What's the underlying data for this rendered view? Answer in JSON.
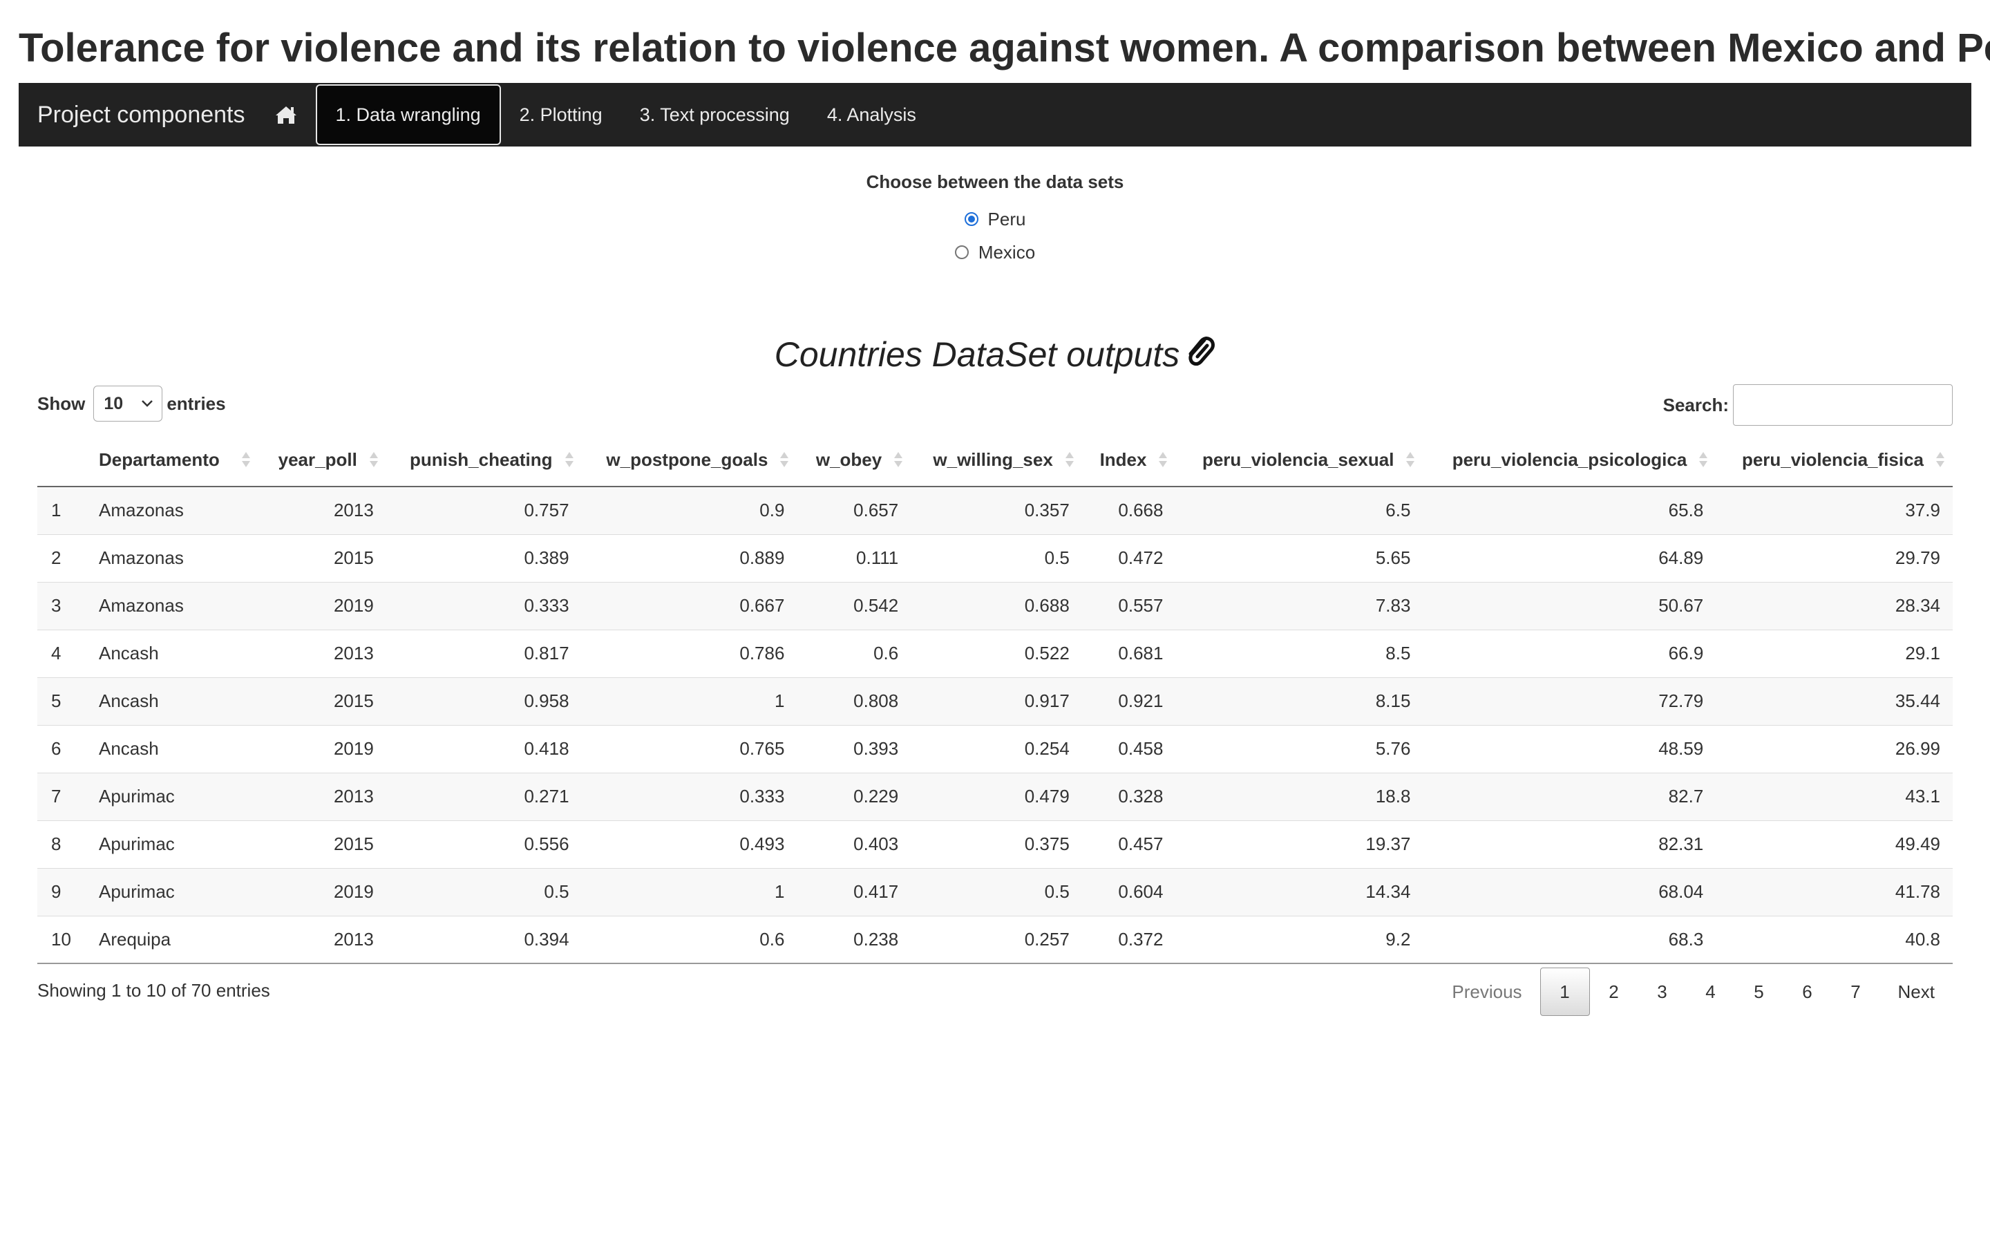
{
  "page": {
    "title": "Tolerance for violence and its relation to violence against women. A comparison between Mexico and Peru"
  },
  "navbar": {
    "brand": "Project components",
    "home_icon": "home-icon",
    "tabs": [
      {
        "label": "1. Data wrangling",
        "active": true
      },
      {
        "label": "2. Plotting",
        "active": false
      },
      {
        "label": "3. Text processing",
        "active": false
      },
      {
        "label": "4. Analysis",
        "active": false
      }
    ]
  },
  "dataset_choice": {
    "label": "Choose between the data sets",
    "options": [
      {
        "label": "Peru",
        "checked": true
      },
      {
        "label": "Mexico",
        "checked": false
      }
    ],
    "accent_color": "#1e6fd9"
  },
  "section": {
    "heading": "Countries DataSet outputs",
    "icon": "paperclip-icon"
  },
  "table_controls": {
    "show_label": "Show",
    "entries_value": "10",
    "entries_label": "entries",
    "search_label": "Search:",
    "search_value": ""
  },
  "table": {
    "columns": [
      "",
      "Departamento",
      "year_poll",
      "punish_cheating",
      "w_postpone_goals",
      "w_obey",
      "w_willing_sex",
      "Index",
      "peru_violencia_sexual",
      "peru_violencia_psicologica",
      "peru_violencia_fisica"
    ],
    "rows": [
      [
        "1",
        "Amazonas",
        "2013",
        "0.757",
        "0.9",
        "0.657",
        "0.357",
        "0.668",
        "6.5",
        "65.8",
        "37.9"
      ],
      [
        "2",
        "Amazonas",
        "2015",
        "0.389",
        "0.889",
        "0.111",
        "0.5",
        "0.472",
        "5.65",
        "64.89",
        "29.79"
      ],
      [
        "3",
        "Amazonas",
        "2019",
        "0.333",
        "0.667",
        "0.542",
        "0.688",
        "0.557",
        "7.83",
        "50.67",
        "28.34"
      ],
      [
        "4",
        "Ancash",
        "2013",
        "0.817",
        "0.786",
        "0.6",
        "0.522",
        "0.681",
        "8.5",
        "66.9",
        "29.1"
      ],
      [
        "5",
        "Ancash",
        "2015",
        "0.958",
        "1",
        "0.808",
        "0.917",
        "0.921",
        "8.15",
        "72.79",
        "35.44"
      ],
      [
        "6",
        "Ancash",
        "2019",
        "0.418",
        "0.765",
        "0.393",
        "0.254",
        "0.458",
        "5.76",
        "48.59",
        "26.99"
      ],
      [
        "7",
        "Apurimac",
        "2013",
        "0.271",
        "0.333",
        "0.229",
        "0.479",
        "0.328",
        "18.8",
        "82.7",
        "43.1"
      ],
      [
        "8",
        "Apurimac",
        "2015",
        "0.556",
        "0.493",
        "0.403",
        "0.375",
        "0.457",
        "19.37",
        "82.31",
        "49.49"
      ],
      [
        "9",
        "Apurimac",
        "2019",
        "0.5",
        "1",
        "0.417",
        "0.5",
        "0.604",
        "14.34",
        "68.04",
        "41.78"
      ],
      [
        "10",
        "Arequipa",
        "2013",
        "0.394",
        "0.6",
        "0.238",
        "0.257",
        "0.372",
        "9.2",
        "68.3",
        "40.8"
      ]
    ]
  },
  "footer": {
    "info": "Showing 1 to 10 of 70 entries",
    "previous_label": "Previous",
    "next_label": "Next",
    "pages": [
      "1",
      "2",
      "3",
      "4",
      "5",
      "6",
      "7"
    ],
    "current_page": "1"
  }
}
